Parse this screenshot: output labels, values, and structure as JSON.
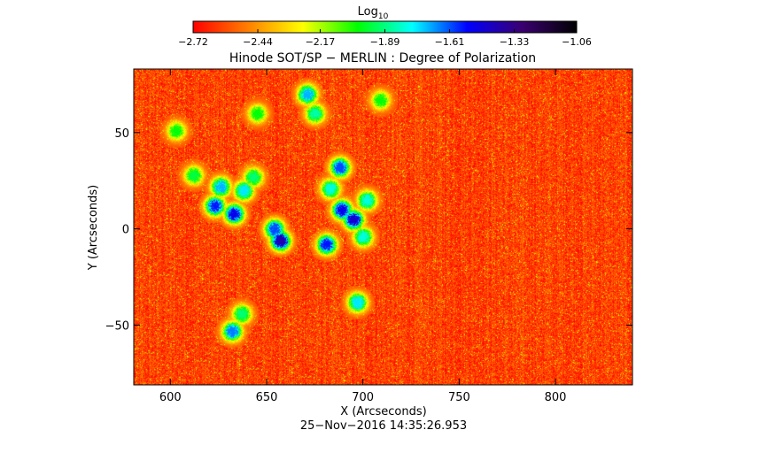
{
  "chart_data": {
    "type": "heatmap",
    "title": "Hinode SOT/SP − MERLIN : Degree of Polarization",
    "xlabel": "X (Arcseconds)",
    "ylabel": "Y (Arcseconds)",
    "timestamp": "25−Nov−2016 14:35:26.953",
    "xlim": [
      581,
      840
    ],
    "ylim": [
      -81,
      83
    ],
    "x_ticks": [
      600,
      650,
      700,
      750,
      800
    ],
    "x_tick_labels": [
      "600",
      "650",
      "700",
      "750",
      "800"
    ],
    "y_ticks": [
      50,
      0,
      -50
    ],
    "y_tick_labels": [
      "50",
      "0",
      "−50"
    ],
    "colorbar": {
      "label": "Log",
      "label_subscript": "10",
      "range": [
        -2.72,
        -1.06
      ],
      "tick_values": [
        -2.72,
        -2.44,
        -2.17,
        -1.89,
        -1.61,
        -1.33,
        -1.06
      ],
      "tick_labels": [
        "−2.72",
        "−2.44",
        "−2.17",
        "−1.89",
        "−1.61",
        "−1.33",
        "−1.06"
      ],
      "colormap": [
        "#ff0000",
        "#ff7f00",
        "#ffff00",
        "#00ff00",
        "#00ffff",
        "#0000ff",
        "#3a0070",
        "#000000"
      ]
    },
    "background_level": -2.6,
    "polarized_patches": [
      {
        "x": 623,
        "y": 12,
        "level": -1.55
      },
      {
        "x": 626,
        "y": 22,
        "level": -1.7
      },
      {
        "x": 633,
        "y": 8,
        "level": -1.5
      },
      {
        "x": 638,
        "y": 20,
        "level": -1.75
      },
      {
        "x": 643,
        "y": 27,
        "level": -1.9
      },
      {
        "x": 657,
        "y": -6,
        "level": -1.4
      },
      {
        "x": 654,
        "y": 0,
        "level": -1.6
      },
      {
        "x": 671,
        "y": 70,
        "level": -1.7
      },
      {
        "x": 675,
        "y": 60,
        "level": -1.85
      },
      {
        "x": 688,
        "y": 32,
        "level": -1.6
      },
      {
        "x": 689,
        "y": 10,
        "level": -1.5
      },
      {
        "x": 683,
        "y": 21,
        "level": -1.8
      },
      {
        "x": 695,
        "y": 5,
        "level": -1.45
      },
      {
        "x": 681,
        "y": -8,
        "level": -1.55
      },
      {
        "x": 700,
        "y": -4,
        "level": -1.8
      },
      {
        "x": 702,
        "y": 15,
        "level": -1.8
      },
      {
        "x": 697,
        "y": -38,
        "level": -1.75
      },
      {
        "x": 632,
        "y": -53,
        "level": -1.65
      },
      {
        "x": 637,
        "y": -44,
        "level": -1.9
      },
      {
        "x": 612,
        "y": 28,
        "level": -1.95
      },
      {
        "x": 603,
        "y": 51,
        "level": -2.0
      },
      {
        "x": 645,
        "y": 60,
        "level": -2.0
      },
      {
        "x": 709,
        "y": 67,
        "level": -2.0
      }
    ]
  }
}
